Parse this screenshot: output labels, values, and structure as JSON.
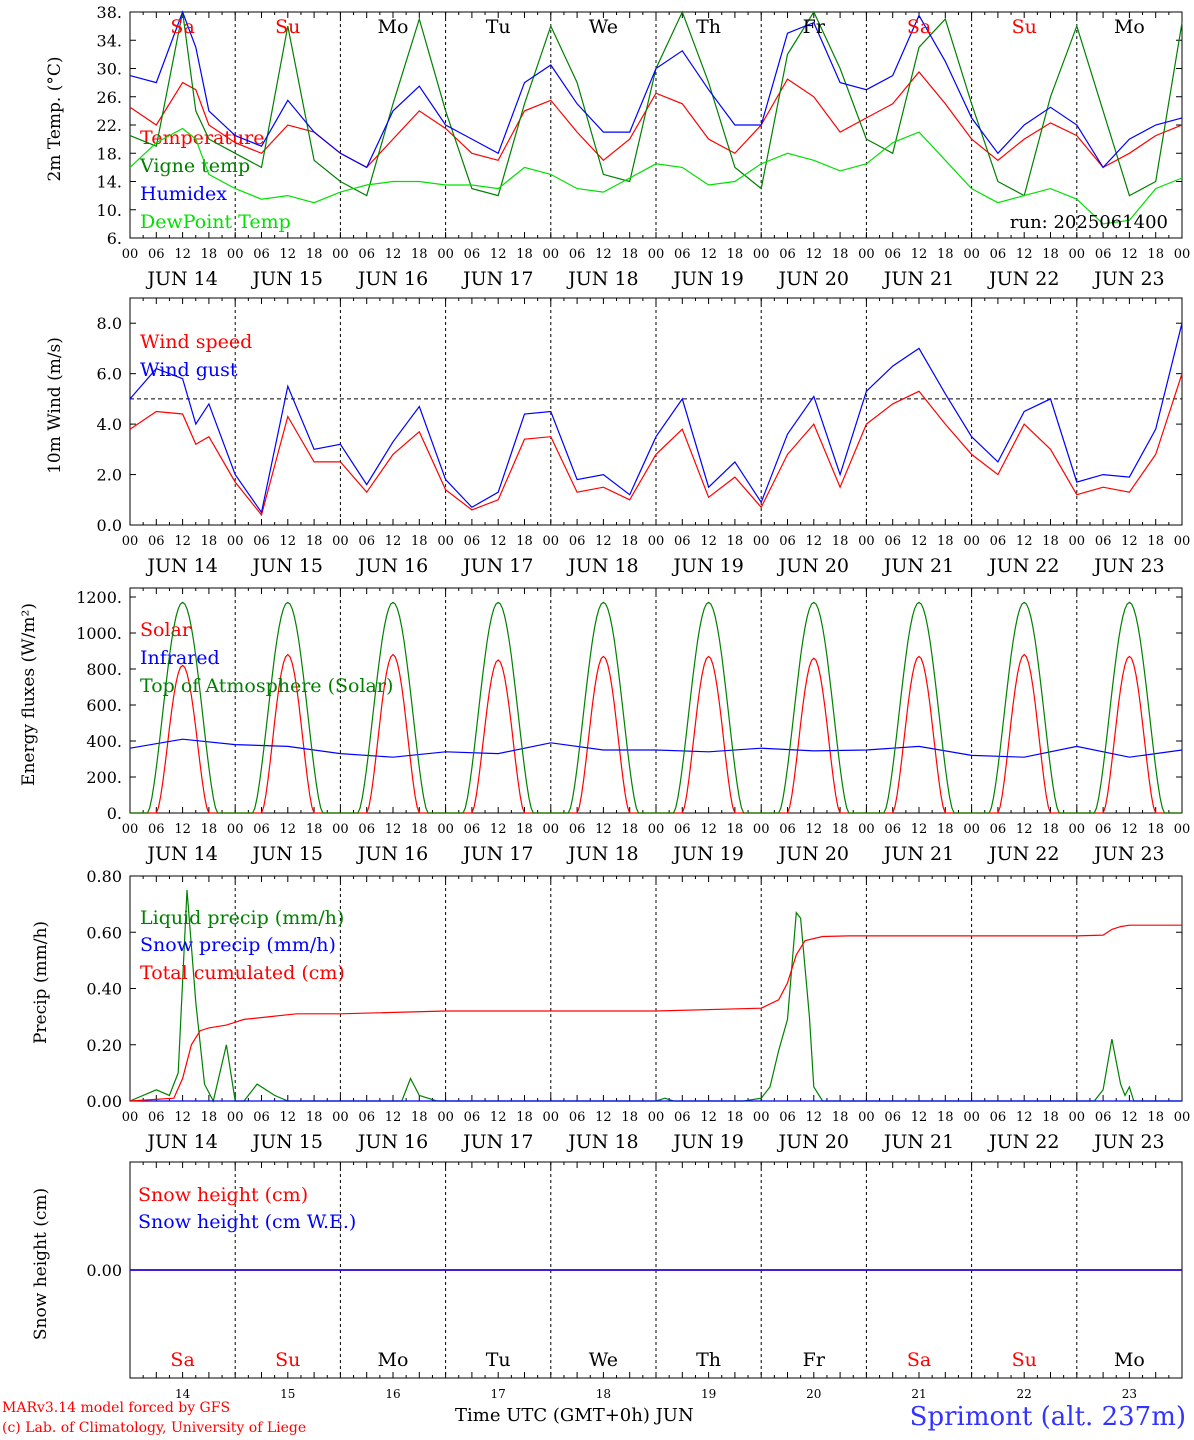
{
  "run_label": "run: 2025061400",
  "footer": {
    "model": "MARv3.14 model forced by GFS",
    "lab": "(c) Lab. of Climatology, University of Liege",
    "xaxis": "Time UTC (GMT+0h) JUN",
    "station": "Sprimont (alt. 237m)"
  },
  "days": [
    {
      "date": "JUN 14",
      "num": "14",
      "dow": "Sa",
      "weekend": true
    },
    {
      "date": "JUN 15",
      "num": "15",
      "dow": "Su",
      "weekend": true
    },
    {
      "date": "JUN 16",
      "num": "16",
      "dow": "Mo",
      "weekend": false
    },
    {
      "date": "JUN 17",
      "num": "17",
      "dow": "Tu",
      "weekend": false
    },
    {
      "date": "JUN 18",
      "num": "18",
      "dow": "We",
      "weekend": false
    },
    {
      "date": "JUN 19",
      "num": "19",
      "dow": "Th",
      "weekend": false
    },
    {
      "date": "JUN 20",
      "num": "20",
      "dow": "Fr",
      "weekend": false
    },
    {
      "date": "JUN 21",
      "num": "21",
      "dow": "Sa",
      "weekend": true
    },
    {
      "date": "JUN 22",
      "num": "22",
      "dow": "Su",
      "weekend": true
    },
    {
      "date": "JUN 23",
      "num": "23",
      "dow": "Mo",
      "weekend": false
    }
  ],
  "hour_ticks": [
    "00",
    "06",
    "12",
    "18"
  ],
  "colors": {
    "red": "#ff0000",
    "green": "#008000",
    "blue": "#0000ff",
    "lime": "#00e000",
    "weekend": "#ff0000",
    "weekday": "#000000"
  },
  "chart_data": [
    {
      "type": "line",
      "ylabel": "2m Temp. (°C)",
      "ylim": [
        6,
        38
      ],
      "yticks": [
        "6.",
        "10.",
        "14.",
        "18.",
        "22.",
        "26.",
        "30.",
        "34.",
        "38."
      ],
      "ytick_values": [
        6,
        10,
        14,
        18,
        22,
        26,
        30,
        34,
        38
      ],
      "x_unit": "hours since JUN 14 00 UTC",
      "series": [
        {
          "name": "Temperature",
          "color": "red",
          "x": [
            0,
            6,
            12,
            15,
            18,
            24,
            30,
            36,
            42,
            48,
            54,
            60,
            66,
            72,
            78,
            84,
            90,
            96,
            102,
            108,
            114,
            120,
            126,
            132,
            138,
            144,
            150,
            156,
            162,
            168,
            174,
            180,
            186,
            192,
            198,
            204,
            210,
            216,
            222,
            228,
            234,
            240
          ],
          "y": [
            24.5,
            22,
            28,
            27,
            22,
            19.5,
            18,
            22,
            21,
            18,
            16,
            20,
            24,
            21.5,
            18,
            17,
            24,
            25.5,
            21,
            17,
            20,
            26.5,
            25,
            20,
            18,
            22,
            28.5,
            26,
            21,
            23,
            25,
            29.5,
            25,
            20,
            17,
            20,
            22.3,
            20.5,
            16,
            18,
            20.5,
            22
          ]
        },
        {
          "name": "Vigne temp",
          "color": "green",
          "x": [
            0,
            6,
            12,
            15,
            18,
            24,
            30,
            36,
            42,
            48,
            54,
            60,
            66,
            72,
            78,
            84,
            90,
            96,
            102,
            108,
            114,
            120,
            126,
            132,
            138,
            144,
            150,
            156,
            162,
            168,
            174,
            180,
            186,
            192,
            198,
            204,
            210,
            216,
            222,
            228,
            234,
            240
          ],
          "y": [
            20.5,
            19,
            38,
            24,
            20,
            18,
            16,
            36,
            17,
            14,
            12,
            25,
            37,
            24,
            13,
            12,
            25,
            36,
            28,
            15,
            14,
            30,
            38,
            28,
            16,
            13,
            32,
            38,
            30,
            20,
            18,
            33,
            37,
            25,
            14,
            12,
            26,
            36,
            24,
            12,
            14,
            36.5
          ]
        },
        {
          "name": "Humidex",
          "color": "blue",
          "x": [
            0,
            6,
            12,
            15,
            18,
            24,
            30,
            36,
            42,
            48,
            54,
            60,
            66,
            72,
            78,
            84,
            90,
            96,
            102,
            108,
            114,
            120,
            126,
            132,
            138,
            144,
            150,
            156,
            162,
            168,
            174,
            180,
            186,
            192,
            198,
            204,
            210,
            216,
            222,
            228,
            234,
            240
          ],
          "y": [
            29,
            28,
            38,
            33,
            24,
            20.5,
            19,
            25.5,
            21,
            18,
            16,
            24,
            27.5,
            22,
            20,
            18,
            28,
            30.5,
            25,
            21,
            21,
            30,
            32.5,
            27,
            22,
            22,
            35,
            36.5,
            28,
            27,
            29,
            37.5,
            31,
            23,
            18,
            22,
            24.5,
            22,
            16,
            20,
            22,
            23
          ]
        },
        {
          "name": "DewPoint Temp",
          "color": "lime",
          "x": [
            0,
            6,
            12,
            15,
            18,
            24,
            30,
            36,
            42,
            48,
            54,
            60,
            66,
            72,
            78,
            84,
            90,
            96,
            102,
            108,
            114,
            120,
            126,
            132,
            138,
            144,
            150,
            156,
            162,
            168,
            174,
            180,
            186,
            192,
            198,
            204,
            210,
            216,
            222,
            228,
            234,
            240
          ],
          "y": [
            16,
            19.5,
            21.5,
            20,
            15,
            13,
            11.5,
            12,
            11,
            12.5,
            13.5,
            14,
            14,
            13.5,
            13.5,
            13,
            16,
            15,
            13,
            12.5,
            14.5,
            16.5,
            16,
            13.5,
            14,
            16.5,
            18,
            17,
            15.5,
            16.5,
            19.5,
            21,
            17,
            13,
            11,
            12,
            13,
            11.5,
            8,
            8.5,
            13,
            14.5
          ]
        }
      ]
    },
    {
      "type": "line",
      "ylabel": "10m Wind (m/s)",
      "ylim": [
        0,
        9
      ],
      "yticks": [
        "0.0",
        "2.0",
        "4.0",
        "6.0",
        "8.0"
      ],
      "ytick_values": [
        0,
        2,
        4,
        6,
        8
      ],
      "reference_line": 5,
      "x_unit": "hours since JUN 14 00 UTC",
      "series": [
        {
          "name": "Wind speed",
          "color": "red",
          "x": [
            0,
            6,
            12,
            15,
            18,
            24,
            30,
            36,
            42,
            48,
            54,
            60,
            66,
            72,
            78,
            84,
            90,
            96,
            102,
            108,
            114,
            120,
            126,
            132,
            138,
            144,
            150,
            156,
            162,
            168,
            174,
            180,
            186,
            192,
            198,
            204,
            210,
            216,
            222,
            228,
            234,
            240
          ],
          "y": [
            3.8,
            4.5,
            4.4,
            3.2,
            3.5,
            1.7,
            0.4,
            4.3,
            2.5,
            2.5,
            1.3,
            2.8,
            3.7,
            1.4,
            0.6,
            1.0,
            3.4,
            3.5,
            1.3,
            1.5,
            1.0,
            2.8,
            3.8,
            1.1,
            1.9,
            0.7,
            2.8,
            4.0,
            1.5,
            4.0,
            4.8,
            5.3,
            4.0,
            2.8,
            2.0,
            4.0,
            3.0,
            1.2,
            1.5,
            1.3,
            2.8,
            6.0
          ]
        },
        {
          "name": "Wind gust",
          "color": "blue",
          "x": [
            0,
            6,
            12,
            15,
            18,
            24,
            30,
            36,
            42,
            48,
            54,
            60,
            66,
            72,
            78,
            84,
            90,
            96,
            102,
            108,
            114,
            120,
            126,
            132,
            138,
            144,
            150,
            156,
            162,
            168,
            174,
            180,
            186,
            192,
            198,
            204,
            210,
            216,
            222,
            228,
            234,
            240
          ],
          "y": [
            5.0,
            6.2,
            5.8,
            4.0,
            4.8,
            2.0,
            0.5,
            5.5,
            3.0,
            3.2,
            1.6,
            3.3,
            4.7,
            1.8,
            0.7,
            1.3,
            4.4,
            4.5,
            1.8,
            2.0,
            1.2,
            3.5,
            5.0,
            1.5,
            2.5,
            0.9,
            3.6,
            5.1,
            2.0,
            5.3,
            6.3,
            7.0,
            5.2,
            3.5,
            2.5,
            4.5,
            5.0,
            1.7,
            2.0,
            1.9,
            3.8,
            8.0
          ]
        }
      ]
    },
    {
      "type": "line",
      "ylabel": "Energy fluxes (W/m²)",
      "ylim": [
        0,
        1250
      ],
      "yticks": [
        "0.",
        "200.",
        "400.",
        "600.",
        "800.",
        "1000.",
        "1200."
      ],
      "ytick_values": [
        0,
        200,
        400,
        600,
        800,
        1000,
        1200
      ],
      "x_unit": "hours since JUN 14 00 UTC",
      "series": [
        {
          "name": "Solar",
          "color": "red",
          "daily_peaks": [
            820,
            880,
            880,
            850,
            870,
            870,
            860,
            870,
            880,
            870
          ]
        },
        {
          "name": "Infrared",
          "color": "blue",
          "x": [
            0,
            12,
            24,
            36,
            48,
            60,
            72,
            84,
            96,
            108,
            120,
            132,
            144,
            156,
            168,
            180,
            192,
            204,
            216,
            228,
            240
          ],
          "y": [
            360,
            410,
            380,
            370,
            330,
            310,
            340,
            330,
            390,
            350,
            350,
            340,
            360,
            345,
            350,
            370,
            320,
            310,
            370,
            310,
            350
          ]
        },
        {
          "name": "Top of Atmosphere (Solar)",
          "color": "green",
          "daily_peak": 1170
        }
      ]
    },
    {
      "type": "line",
      "ylabel": "Precip (mm/h)",
      "ylim": [
        0,
        0.8
      ],
      "yticks": [
        "0.00",
        "0.20",
        "0.40",
        "0.60",
        "0.80"
      ],
      "ytick_values": [
        0,
        0.2,
        0.4,
        0.6,
        0.8
      ],
      "x_unit": "hours since JUN 14 00 UTC",
      "series": [
        {
          "name": "Liquid precip (mm/h)",
          "color": "green",
          "x": [
            0,
            6,
            9,
            11,
            13,
            14,
            15,
            17,
            19,
            22,
            24,
            26,
            29,
            33,
            36,
            38,
            40,
            48,
            50,
            56,
            62,
            64,
            66,
            70,
            72,
            120,
            122,
            124,
            126,
            140,
            144,
            146,
            148,
            150,
            152,
            153,
            155,
            156,
            158,
            162,
            168,
            220,
            222,
            224,
            226,
            227,
            228,
            229,
            230,
            232,
            240
          ],
          "y": [
            0,
            0.04,
            0.02,
            0.1,
            0.75,
            0.55,
            0.35,
            0.06,
            0,
            0.2,
            0,
            0,
            0.06,
            0.02,
            0,
            0,
            0,
            0,
            0,
            0,
            0,
            0.08,
            0.02,
            0,
            0,
            0,
            0.01,
            0,
            0,
            0,
            0.01,
            0.05,
            0.18,
            0.29,
            0.67,
            0.65,
            0.3,
            0.05,
            0,
            0,
            0,
            0,
            0.04,
            0.22,
            0.06,
            0.02,
            0.05,
            0,
            0,
            0,
            0
          ]
        },
        {
          "name": "Snow precip (mm/h)",
          "color": "blue",
          "x": [
            0,
            240
          ],
          "y": [
            0,
            0
          ]
        },
        {
          "name": "Total cumulated (cm)",
          "color": "red",
          "x": [
            0,
            10,
            12,
            14,
            16,
            18,
            22,
            26,
            32,
            38,
            48,
            72,
            96,
            120,
            144,
            148,
            150,
            152,
            154,
            158,
            164,
            180,
            192,
            216,
            222,
            224,
            226,
            228,
            240
          ],
          "y": [
            0,
            0.01,
            0.08,
            0.2,
            0.25,
            0.26,
            0.27,
            0.29,
            0.3,
            0.31,
            0.31,
            0.32,
            0.32,
            0.32,
            0.33,
            0.36,
            0.42,
            0.52,
            0.57,
            0.585,
            0.587,
            0.587,
            0.587,
            0.587,
            0.59,
            0.61,
            0.62,
            0.625,
            0.625
          ]
        }
      ]
    },
    {
      "type": "line",
      "ylabel": "Snow height (cm)",
      "ylim": [
        -1,
        1
      ],
      "yticks": [
        "0.00"
      ],
      "ytick_values": [
        0
      ],
      "x_unit": "hours since JUN 14 00 UTC",
      "series": [
        {
          "name": "Snow height (cm)",
          "color": "red",
          "x": [
            0,
            240
          ],
          "y": [
            0,
            0
          ]
        },
        {
          "name": "Snow height (cm W.E.)",
          "color": "blue",
          "x": [
            0,
            240
          ],
          "y": [
            0,
            0
          ]
        }
      ]
    }
  ]
}
